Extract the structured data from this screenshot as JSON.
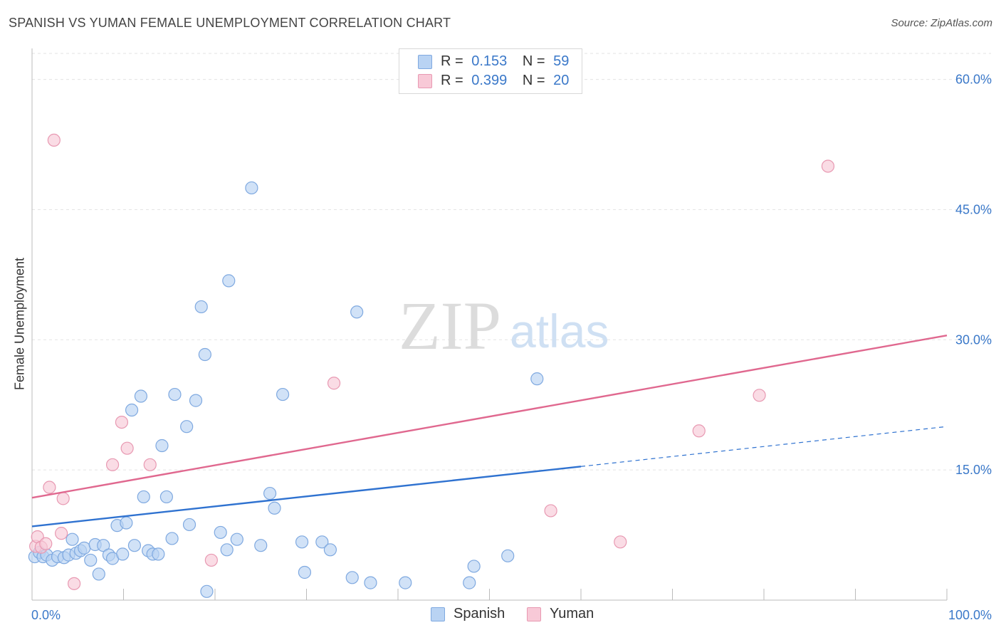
{
  "header": {
    "title": "SPANISH VS YUMAN FEMALE UNEMPLOYMENT CORRELATION CHART",
    "source": "Source: ZipAtlas.com"
  },
  "watermark": {
    "zip": "ZIP",
    "atlas": "atlas"
  },
  "legend": {
    "r_label": "R =",
    "n_label": "N =",
    "items": [
      {
        "name": "Spanish",
        "r": "0.153",
        "n": "59"
      },
      {
        "name": "Yuman",
        "r": "0.399",
        "n": "20"
      }
    ]
  },
  "colors": {
    "spanish_fill": "#b9d3f3",
    "spanish_stroke": "#7fa9e0",
    "spanish_line": "#2f72d0",
    "yuman_fill": "#f8c9d7",
    "yuman_stroke": "#e899b2",
    "yuman_line": "#e0688f",
    "tick_label": "#3a78c9",
    "grid": "#e3e3e3"
  },
  "chart_data": {
    "type": "scatter",
    "title": "SPANISH VS YUMAN FEMALE UNEMPLOYMENT CORRELATION CHART",
    "xlabel": "",
    "ylabel": "Female Unemployment",
    "xlim": [
      0,
      100
    ],
    "ylim": [
      0,
      63
    ],
    "x_tick_labels": [
      "0.0%",
      "100.0%"
    ],
    "y_ticks": [
      15,
      30,
      45,
      60
    ],
    "y_tick_labels": [
      "15.0%",
      "30.0%",
      "45.0%",
      "60.0%"
    ],
    "grid": true,
    "legend_position": "top-center",
    "series": [
      {
        "name": "Spanish",
        "r": 0.153,
        "n": 59,
        "points": [
          [
            0.3,
            5.0
          ],
          [
            0.8,
            5.5
          ],
          [
            1.2,
            5.0
          ],
          [
            1.6,
            5.2
          ],
          [
            2.2,
            4.6
          ],
          [
            2.8,
            5.0
          ],
          [
            3.5,
            4.9
          ],
          [
            4.0,
            5.2
          ],
          [
            4.4,
            7.0
          ],
          [
            4.8,
            5.4
          ],
          [
            5.3,
            5.7
          ],
          [
            5.7,
            6.0
          ],
          [
            6.4,
            4.6
          ],
          [
            6.9,
            6.4
          ],
          [
            7.3,
            3.0
          ],
          [
            7.8,
            6.3
          ],
          [
            8.4,
            5.2
          ],
          [
            8.8,
            4.8
          ],
          [
            9.3,
            8.6
          ],
          [
            9.9,
            5.3
          ],
          [
            10.3,
            8.9
          ],
          [
            10.9,
            21.9
          ],
          [
            11.2,
            6.3
          ],
          [
            11.9,
            23.5
          ],
          [
            12.2,
            11.9
          ],
          [
            12.7,
            5.7
          ],
          [
            13.2,
            5.3
          ],
          [
            13.8,
            5.3
          ],
          [
            14.2,
            17.8
          ],
          [
            14.7,
            11.9
          ],
          [
            15.3,
            7.1
          ],
          [
            15.6,
            23.7
          ],
          [
            16.9,
            20.0
          ],
          [
            17.2,
            8.7
          ],
          [
            17.9,
            23.0
          ],
          [
            18.5,
            33.8
          ],
          [
            18.9,
            28.3
          ],
          [
            19.1,
            1.0
          ],
          [
            20.6,
            7.8
          ],
          [
            21.3,
            5.8
          ],
          [
            21.5,
            36.8
          ],
          [
            22.4,
            7.0
          ],
          [
            24.0,
            47.5
          ],
          [
            25.0,
            6.3
          ],
          [
            26.0,
            12.3
          ],
          [
            26.5,
            10.6
          ],
          [
            27.4,
            23.7
          ],
          [
            29.5,
            6.7
          ],
          [
            29.8,
            3.2
          ],
          [
            31.7,
            6.7
          ],
          [
            32.6,
            5.8
          ],
          [
            35.0,
            2.6
          ],
          [
            35.5,
            33.2
          ],
          [
            37.0,
            2.0
          ],
          [
            40.8,
            2.0
          ],
          [
            47.8,
            2.0
          ],
          [
            48.3,
            3.9
          ],
          [
            52.0,
            5.1
          ],
          [
            55.2,
            25.5
          ]
        ],
        "trend": {
          "x": [
            0,
            60
          ],
          "y": [
            8.5,
            15.4
          ]
        },
        "trend_extension": {
          "x": [
            60,
            100
          ],
          "y": [
            15.4,
            20.0
          ]
        }
      },
      {
        "name": "Yuman",
        "r": 0.399,
        "n": 20,
        "points": [
          [
            0.4,
            6.2
          ],
          [
            0.6,
            7.3
          ],
          [
            1.0,
            6.1
          ],
          [
            1.5,
            6.5
          ],
          [
            1.9,
            13.0
          ],
          [
            2.4,
            53.0
          ],
          [
            3.2,
            7.7
          ],
          [
            3.4,
            11.7
          ],
          [
            4.6,
            1.9
          ],
          [
            8.8,
            15.6
          ],
          [
            9.8,
            20.5
          ],
          [
            10.4,
            17.5
          ],
          [
            12.9,
            15.6
          ],
          [
            19.6,
            4.6
          ],
          [
            33.0,
            25.0
          ],
          [
            56.7,
            10.3
          ],
          [
            64.3,
            6.7
          ],
          [
            72.9,
            19.5
          ],
          [
            79.5,
            23.6
          ],
          [
            87.0,
            50.0
          ]
        ],
        "trend": {
          "x": [
            0,
            100
          ],
          "y": [
            11.8,
            30.5
          ]
        }
      }
    ]
  }
}
